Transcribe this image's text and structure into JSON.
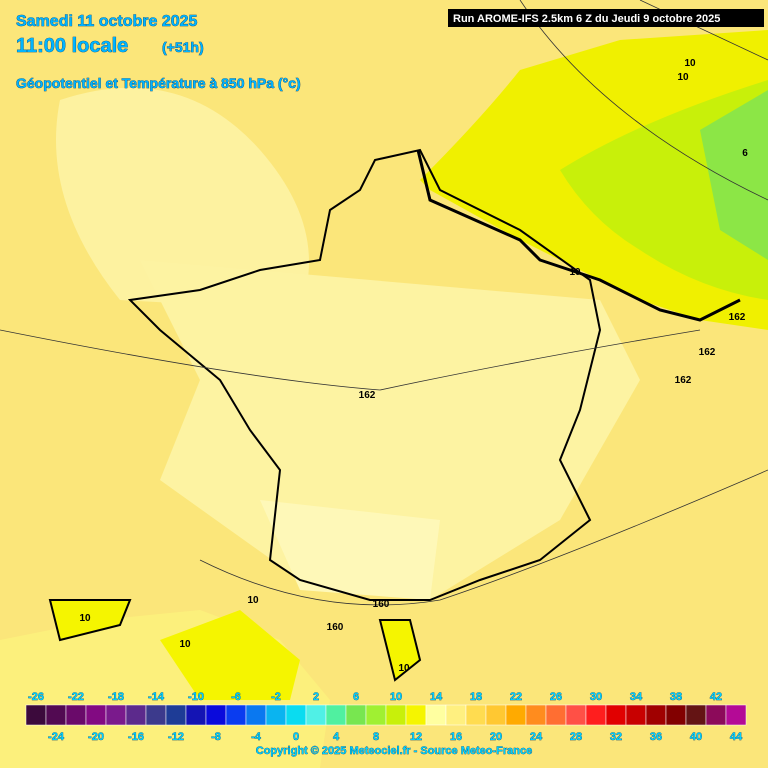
{
  "header": {
    "date": "Samedi 11 octobre 2025",
    "time": "11:00 locale",
    "lead": "(+51h)",
    "field": "Géopotentiel et Température à 850 hPa (°c)",
    "run": "Run AROME-IFS 2.5km 6 Z du Jeudi 9 octobre 2025"
  },
  "contour_labels": [
    "10",
    "10",
    "6",
    "10",
    "162",
    "162",
    "162",
    "162",
    "10",
    "10",
    "160",
    "160",
    "10",
    "10"
  ],
  "colorbar": {
    "colors": [
      "#3c0a3c",
      "#520a52",
      "#6a0a6a",
      "#820a82",
      "#7a1a8c",
      "#5c2a8c",
      "#3c3a8c",
      "#1e3c96",
      "#1414b4",
      "#0a0adc",
      "#0a3cf0",
      "#0a78f0",
      "#0ab4f0",
      "#0adcf0",
      "#50f0e6",
      "#50f0a0",
      "#78e650",
      "#a0f032",
      "#c8f00a",
      "#f5f500",
      "#ffffa0",
      "#fff080",
      "#ffdc50",
      "#ffc832",
      "#ffaa00",
      "#ff8c1e",
      "#ff6e32",
      "#ff5046",
      "#ff1e1e",
      "#e10000",
      "#c80000",
      "#a00000",
      "#820000",
      "#641414",
      "#8c0a5a",
      "#b40a96"
    ],
    "top_labels": [
      -26,
      -22,
      -18,
      -14,
      -10,
      -6,
      -2,
      2,
      6,
      10,
      14,
      18,
      22,
      26,
      30,
      34,
      38,
      42
    ],
    "bottom_labels": [
      -24,
      -20,
      -16,
      -12,
      -8,
      -4,
      0,
      4,
      8,
      12,
      16,
      20,
      24,
      28,
      32,
      36,
      40,
      44
    ]
  },
  "footer": "Copyright © 2025 Meteociel.fr - Source Meteo-France"
}
